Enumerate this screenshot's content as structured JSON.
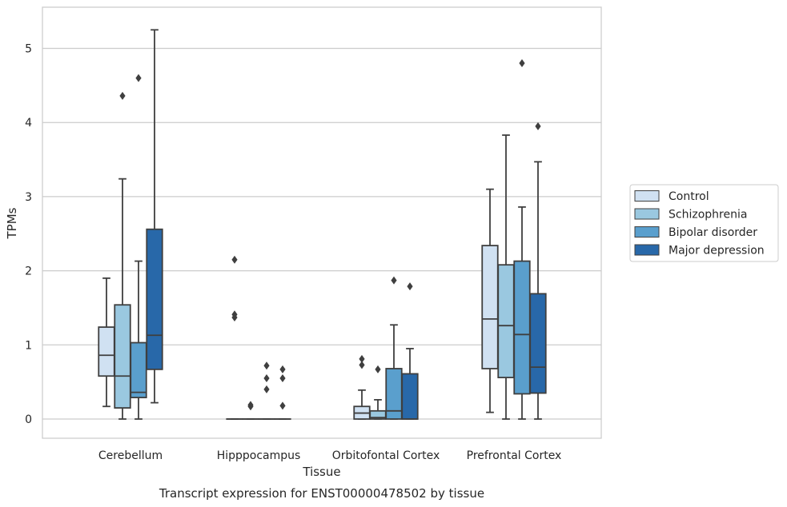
{
  "chart_data": {
    "type": "box",
    "title": "",
    "caption": "Transcript expression for ENST00000478502 by tissue",
    "xlabel": "Tissue",
    "ylabel": "TPMs",
    "ylim": [
      -0.25,
      5.5
    ],
    "yticks": [
      0,
      1,
      2,
      3,
      4,
      5
    ],
    "grid": "horizontal",
    "legend_position": "right",
    "categories": [
      "Cerebellum",
      "Hipppocampus",
      "Orbitofontal Cortex",
      "Prefrontal Cortex"
    ],
    "series": [
      {
        "name": "Control",
        "color": "#d0e1f2",
        "boxes": [
          {
            "whislo": 0.17,
            "q1": 0.58,
            "med": 0.86,
            "q3": 1.24,
            "whishi": 1.9,
            "fliers": []
          },
          {
            "whislo": 0.0,
            "q1": 0.0,
            "med": 0.0,
            "q3": 0.0,
            "whishi": 0.0,
            "fliers": [
              2.15,
              1.41,
              1.37
            ]
          },
          {
            "whislo": 0.0,
            "q1": 0.0,
            "med": 0.08,
            "q3": 0.17,
            "whishi": 0.39,
            "fliers": [
              0.81,
              0.73
            ]
          },
          {
            "whislo": 0.09,
            "q1": 0.68,
            "med": 1.35,
            "q3": 2.34,
            "whishi": 3.1,
            "fliers": []
          }
        ]
      },
      {
        "name": "Schizophrenia",
        "color": "#9ac8e0",
        "boxes": [
          {
            "whislo": 0.0,
            "q1": 0.15,
            "med": 0.58,
            "q3": 1.54,
            "whishi": 3.24,
            "fliers": [
              4.36
            ]
          },
          {
            "whislo": 0.0,
            "q1": 0.0,
            "med": 0.0,
            "q3": 0.0,
            "whishi": 0.0,
            "fliers": [
              0.19,
              0.17
            ]
          },
          {
            "whislo": 0.0,
            "q1": 0.0,
            "med": 0.02,
            "q3": 0.11,
            "whishi": 0.26,
            "fliers": [
              0.67
            ]
          },
          {
            "whislo": 0.0,
            "q1": 0.56,
            "med": 1.26,
            "q3": 2.08,
            "whishi": 3.83,
            "fliers": []
          }
        ]
      },
      {
        "name": "Bipolar disorder",
        "color": "#5a9fcd",
        "boxes": [
          {
            "whislo": 0.0,
            "q1": 0.29,
            "med": 0.36,
            "q3": 1.03,
            "whishi": 2.13,
            "fliers": [
              4.6
            ]
          },
          {
            "whislo": 0.0,
            "q1": 0.0,
            "med": 0.0,
            "q3": 0.0,
            "whishi": 0.0,
            "fliers": [
              0.72,
              0.55,
              0.4
            ]
          },
          {
            "whislo": 0.0,
            "q1": 0.0,
            "med": 0.11,
            "q3": 0.68,
            "whishi": 1.27,
            "fliers": [
              1.87
            ]
          },
          {
            "whislo": 0.0,
            "q1": 0.34,
            "med": 1.14,
            "q3": 2.13,
            "whishi": 2.86,
            "fliers": [
              4.8
            ]
          }
        ]
      },
      {
        "name": "Major depression",
        "color": "#2868a9",
        "boxes": [
          {
            "whislo": 0.22,
            "q1": 0.67,
            "med": 1.13,
            "q3": 2.56,
            "whishi": 5.25,
            "fliers": []
          },
          {
            "whislo": 0.0,
            "q1": 0.0,
            "med": 0.0,
            "q3": 0.0,
            "whishi": 0.0,
            "fliers": [
              0.67,
              0.55,
              0.18
            ]
          },
          {
            "whislo": 0.0,
            "q1": 0.0,
            "med": 0.0,
            "q3": 0.61,
            "whishi": 0.95,
            "fliers": [
              1.79
            ]
          },
          {
            "whislo": 0.0,
            "q1": 0.35,
            "med": 0.7,
            "q3": 1.69,
            "whishi": 3.47,
            "fliers": [
              3.95
            ]
          }
        ]
      }
    ]
  }
}
